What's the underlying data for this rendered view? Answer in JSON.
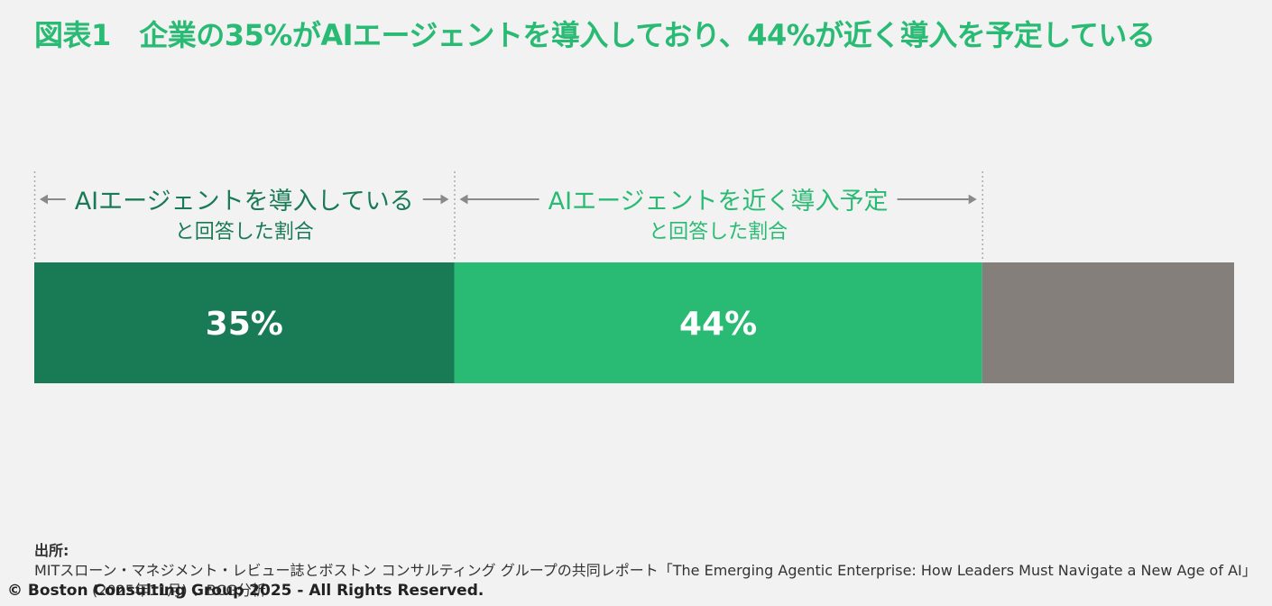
{
  "title": "図表1　企業の35%がAIエージェントを導入しており、44%が近く導入を予定している",
  "colors": {
    "title": "#29ba74",
    "adopted": "#197a56",
    "planned": "#29ba74",
    "rest": "#857f7c",
    "divider": "#aaaaaa",
    "arrow": "#8a8a8a"
  },
  "chart_data": {
    "type": "bar",
    "orientation": "horizontal-stacked",
    "xlim": [
      0,
      100
    ],
    "segments": [
      {
        "label_main": "AIエージェントを導入している",
        "label_sub": "と回答した割合",
        "value": 35,
        "value_label": "35%"
      },
      {
        "label_main": "AIエージェントを近く導入予定",
        "label_sub": "と回答した割合",
        "value": 44,
        "value_label": "44%"
      },
      {
        "label_main": "",
        "label_sub": "",
        "value": 21,
        "value_label": ""
      }
    ]
  },
  "footer": {
    "source_label": "出所:",
    "source_line1": "MITスローン・マネジメント・レビュー誌とボストン コンサルティング グループの共同レポート「The Emerging Agentic Enterprise: How Leaders Must Navigate a New Age of AI」",
    "source_line2": "(2025年11月) 、BCG分析",
    "copyright": "© Boston Consulting Group 2025 - All Rights Reserved."
  }
}
